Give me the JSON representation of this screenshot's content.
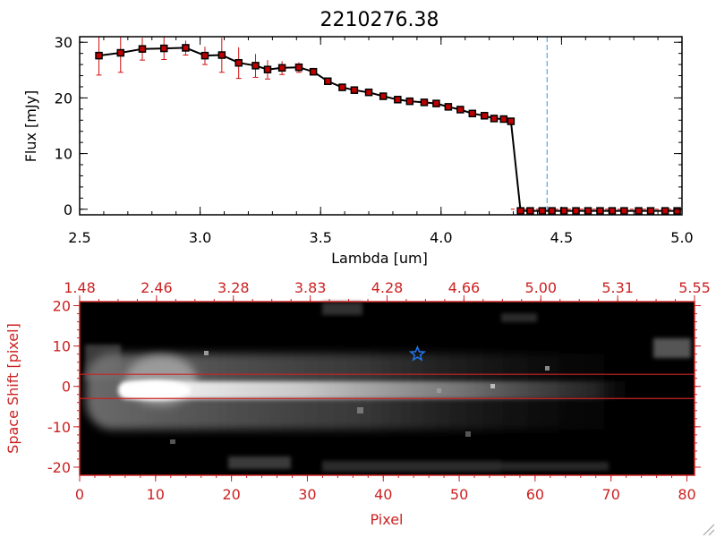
{
  "chart_data": [
    {
      "type": "line",
      "title": "2210276.38",
      "xlabel": "Lambda [um]",
      "ylabel": "Flux [mJy]",
      "xlim": [
        2.5,
        5.0
      ],
      "ylim": [
        -1,
        31
      ],
      "x_ticks": [
        "2.5",
        "3.0",
        "3.5",
        "4.0",
        "4.5",
        "5.0"
      ],
      "y_ticks": [
        "0",
        "10",
        "20",
        "30"
      ],
      "x_tick_values": [
        2.5,
        3.0,
        3.5,
        4.0,
        4.5,
        5.0
      ],
      "y_tick_values": [
        0,
        10,
        20,
        30
      ],
      "cutoff_line_x": 4.44,
      "series": [
        {
          "x": [
            2.58,
            2.67,
            2.76,
            2.85,
            2.94,
            3.02,
            3.09,
            3.16,
            3.23,
            3.28,
            3.34,
            3.41,
            3.47,
            3.53,
            3.59,
            3.64,
            3.7,
            3.76,
            3.82,
            3.87,
            3.93,
            3.98,
            4.03,
            4.08,
            4.13,
            4.18,
            4.22,
            4.26,
            4.29,
            4.33,
            4.37,
            4.42,
            4.46,
            4.51,
            4.56,
            4.61,
            4.66,
            4.71,
            4.76,
            4.82,
            4.87,
            4.93,
            4.98
          ],
          "y": [
            27.6,
            28.1,
            28.8,
            28.9,
            29.0,
            27.6,
            27.7,
            26.3,
            25.8,
            25.1,
            25.4,
            25.5,
            24.7,
            23.0,
            21.9,
            21.4,
            21.0,
            20.3,
            19.7,
            19.4,
            19.2,
            19.0,
            18.4,
            17.9,
            17.2,
            16.8,
            16.3,
            16.2,
            15.8,
            -0.3,
            -0.3,
            -0.3,
            -0.3,
            -0.3,
            -0.3,
            -0.3,
            -0.3,
            -0.3,
            -0.3,
            -0.3,
            -0.3,
            -0.3,
            -0.3
          ],
          "yerr": [
            3.5,
            3.5,
            2.0,
            2.0,
            1.3,
            1.6,
            3.1,
            2.8,
            2.1,
            1.7,
            1.2,
            0.9,
            0.5,
            0.4,
            0.3,
            0.3,
            0.3,
            0.3,
            0.3,
            0.3,
            0.3,
            0.3,
            0.3,
            0.3,
            0.3,
            0.3,
            0.3,
            0.3,
            0.3,
            0.0,
            0.0,
            0.0,
            0.0,
            0.0,
            0.0,
            0.0,
            0.0,
            0.0,
            0.0,
            0.0,
            0.0,
            0.0,
            0.0
          ]
        }
      ],
      "colors": {
        "line": "#000000",
        "marker": "#c00000",
        "errorbar": "#d01010",
        "cutoff": "#3399dd"
      },
      "grid": false
    },
    {
      "type": "heatmap",
      "title": "",
      "xlabel": "Pixel",
      "ylabel": "Space Shift [pixel]",
      "xlim": [
        0,
        81
      ],
      "ylim": [
        -22,
        21
      ],
      "x_ticks": [
        "0",
        "10",
        "20",
        "30",
        "40",
        "50",
        "60",
        "70",
        "80"
      ],
      "y_ticks": [
        "-20",
        "-10",
        "0",
        "10",
        "20"
      ],
      "x_tick_values": [
        0,
        10,
        20,
        30,
        40,
        50,
        60,
        70,
        80
      ],
      "y_tick_values": [
        -20,
        -10,
        0,
        10,
        20
      ],
      "top_axis_ticks": [
        "1.48",
        "2.46",
        "3.28",
        "3.83",
        "4.28",
        "4.66",
        "5.00",
        "5.31",
        "5.55"
      ],
      "extraction_aperture_y": [
        3,
        -3
      ],
      "source_marker": {
        "x": 44.5,
        "y": 8,
        "symbol": "star"
      },
      "trace_center_y": 0,
      "colors": {
        "axes": "#cc2222",
        "aperture": "#cc2222",
        "star": "#2277ee",
        "background": "#000000"
      },
      "grid": false
    }
  ]
}
